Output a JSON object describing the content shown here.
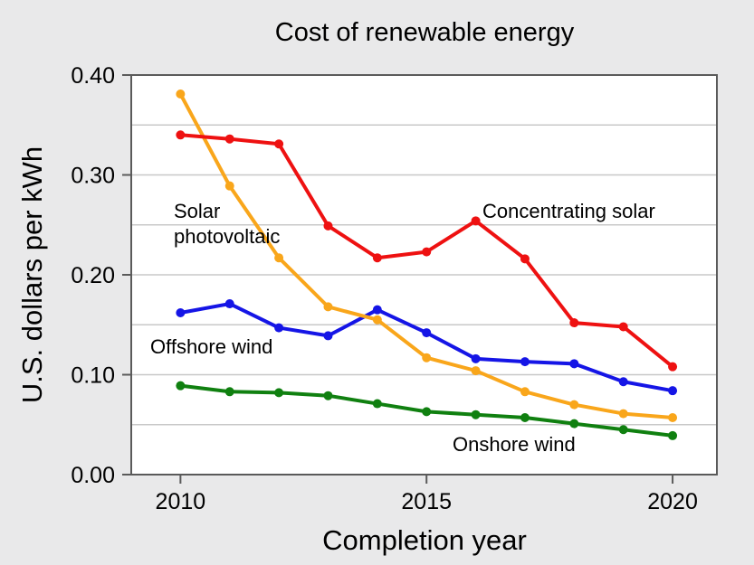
{
  "chart_data": {
    "type": "line",
    "title": "Cost of renewable energy",
    "xlabel": "Completion year",
    "ylabel": "U.S. dollars per kWh",
    "x": [
      2010,
      2011,
      2012,
      2013,
      2014,
      2015,
      2016,
      2017,
      2018,
      2019,
      2020
    ],
    "xlim": [
      2009,
      2020.9
    ],
    "ylim": [
      0,
      0.4
    ],
    "xticks": [
      2010,
      2015,
      2020
    ],
    "xtick_labels": [
      "2010",
      "2015",
      "2020"
    ],
    "yticks": [
      0,
      0.1,
      0.2,
      0.3,
      0.4
    ],
    "ytick_labels": [
      "0.00",
      "0.10",
      "0.20",
      "0.30",
      "0.40"
    ],
    "grid": true,
    "background": "#e9e9ea",
    "plot_background": "#ffffff",
    "series": [
      {
        "name": "Concentrating solar",
        "color": "#ee1111",
        "values": [
          0.34,
          0.336,
          0.331,
          0.249,
          0.217,
          0.223,
          0.254,
          0.216,
          0.152,
          0.148,
          0.108
        ]
      },
      {
        "name": "Solar photovoltaic",
        "color": "#f9a61b",
        "values": [
          0.381,
          0.289,
          0.217,
          0.168,
          0.155,
          0.117,
          0.104,
          0.083,
          0.07,
          0.061,
          0.057
        ]
      },
      {
        "name": "Offshore wind",
        "color": "#1515e6",
        "values": [
          0.162,
          0.171,
          0.147,
          0.139,
          0.165,
          0.142,
          0.116,
          0.113,
          0.111,
          0.093,
          0.084
        ]
      },
      {
        "name": "Onshore wind",
        "color": "#108010",
        "values": [
          0.089,
          0.083,
          0.082,
          0.079,
          0.071,
          0.063,
          0.06,
          0.057,
          0.051,
          0.045,
          0.039
        ]
      }
    ],
    "annotations": [
      {
        "series": "Solar photovoltaic",
        "lines": [
          "Solar",
          "photovoltaic"
        ]
      },
      {
        "series": "Concentrating solar",
        "lines": [
          "Concentrating solar"
        ]
      },
      {
        "series": "Offshore wind",
        "lines": [
          "Offshore wind"
        ]
      },
      {
        "series": "Onshore wind",
        "lines": [
          "Onshore wind"
        ]
      }
    ]
  }
}
